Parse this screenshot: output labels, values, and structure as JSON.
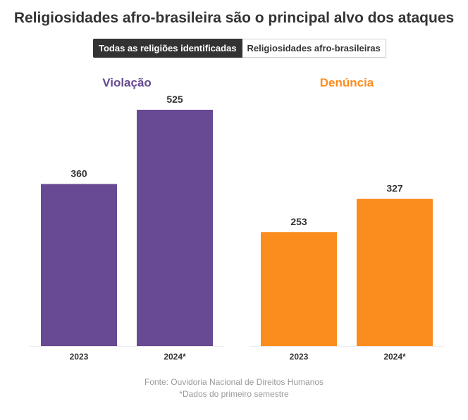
{
  "title": "Religiosidades afro-brasileira são o principal alvo dos ataques",
  "toggle": {
    "options": [
      "Todas as religiões identificadas",
      "Religiosidades afro-brasileiras"
    ],
    "selected": 0
  },
  "chart_data": [
    {
      "type": "bar",
      "title": "Violação",
      "color": "#674a93",
      "categories": [
        "2023",
        "2024*"
      ],
      "values": [
        360,
        525
      ],
      "ylim": [
        0,
        525
      ]
    },
    {
      "type": "bar",
      "title": "Denúncia",
      "color": "#fb8c1e",
      "categories": [
        "2023",
        "2024*"
      ],
      "values": [
        253,
        327
      ],
      "ylim": [
        0,
        525
      ]
    }
  ],
  "footer": {
    "source": "Fonte: Ouvidoria Nacional de Direitos Humanos",
    "note": "*Dados do primeiro semestre"
  }
}
